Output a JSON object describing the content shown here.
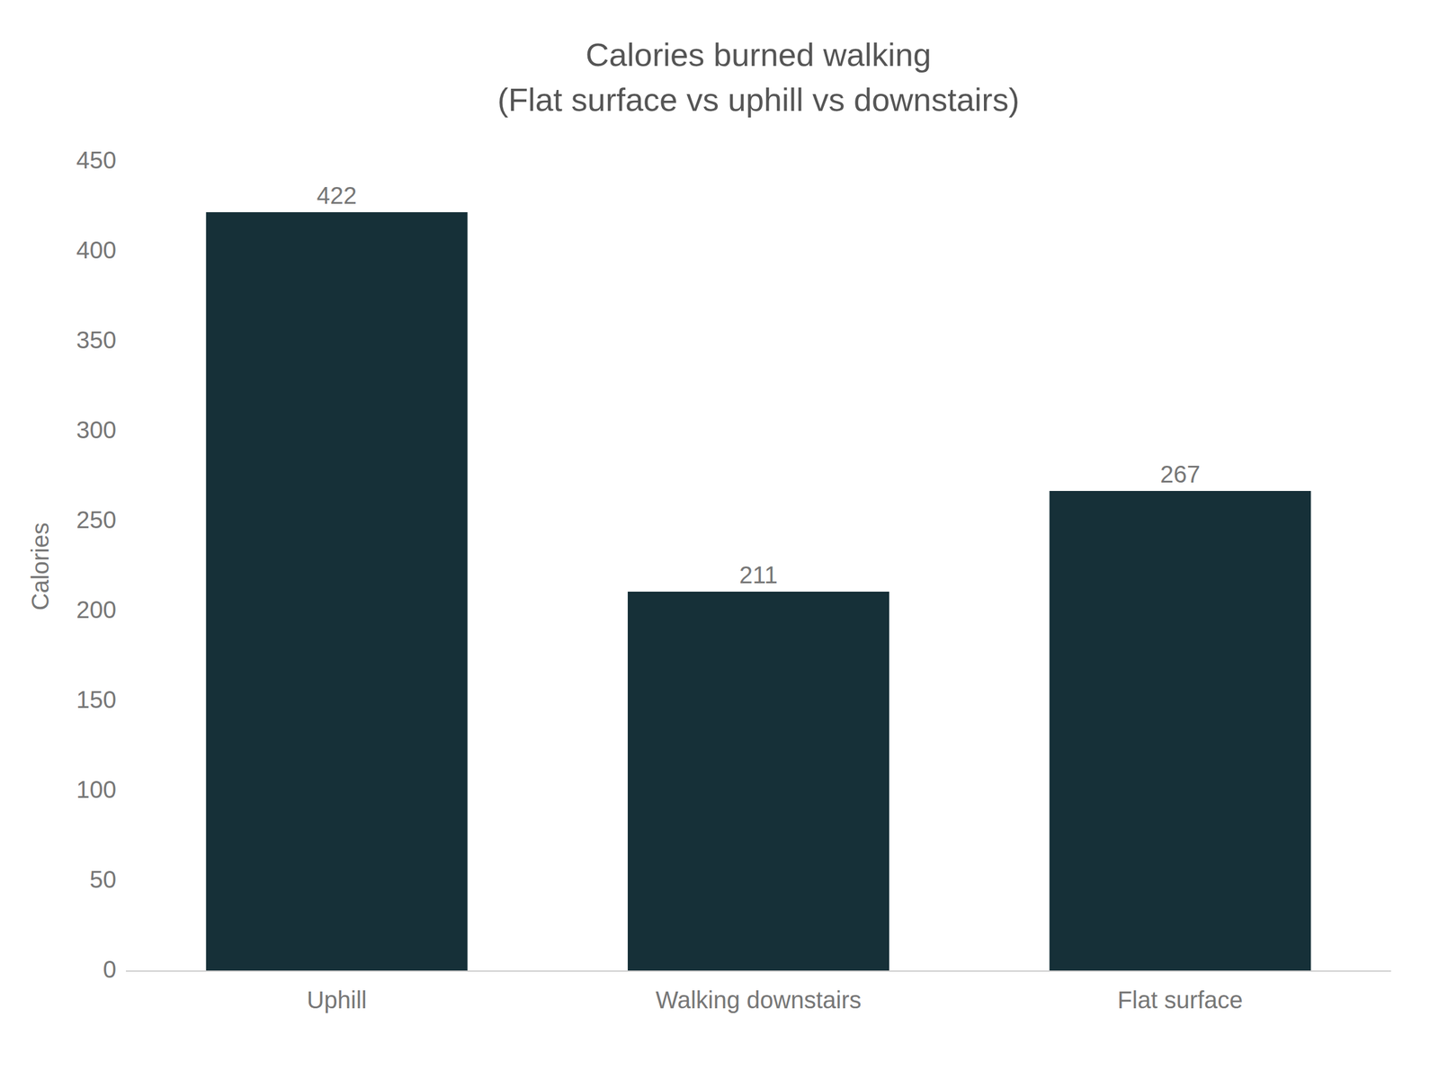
{
  "chart_data": {
    "type": "bar",
    "title": "Calories burned walking",
    "subtitle": "(Flat surface vs uphill vs downstairs)",
    "ylabel": "Calories",
    "categories": [
      "Uphill",
      "Walking downstairs",
      "Flat surface"
    ],
    "values": [
      422,
      211,
      267
    ],
    "color": "#163038",
    "ylim": [
      0,
      450
    ],
    "yticks": [
      0,
      50,
      100,
      150,
      200,
      250,
      300,
      350,
      400,
      450
    ],
    "grid": false,
    "data_labels": true
  }
}
